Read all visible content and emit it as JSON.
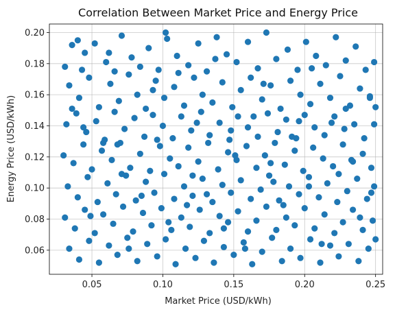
{
  "chart_data": {
    "type": "scatter",
    "title": "Correlation Between Market Price and Energy Price",
    "xlabel": "Market Price (USD/kWh)",
    "ylabel": "Energy Price (USD/kWh)",
    "xlim": [
      0.02,
      0.255
    ],
    "ylim": [
      0.0445,
      0.2055
    ],
    "xticks": [
      0.05,
      0.1,
      0.15,
      0.2,
      0.25
    ],
    "xtick_labels": [
      "0.05",
      "0.10",
      "0.15",
      "0.20",
      "0.25"
    ],
    "yticks": [
      0.06,
      0.08,
      0.1,
      0.12,
      0.14,
      0.16,
      0.18,
      0.2
    ],
    "ytick_labels": [
      "0.06",
      "0.08",
      "0.10",
      "0.12",
      "0.14",
      "0.16",
      "0.18",
      "0.20"
    ],
    "grid": true,
    "legend": "none",
    "marker_color": "#1f77b4",
    "series": [
      {
        "points": [
          [
            0.031,
            0.178
          ],
          [
            0.036,
            0.192
          ],
          [
            0.04,
            0.195
          ],
          [
            0.045,
            0.187
          ],
          [
            0.052,
            0.193
          ],
          [
            0.06,
            0.181
          ],
          [
            0.066,
            0.175
          ],
          [
            0.071,
            0.198
          ],
          [
            0.078,
            0.184
          ],
          [
            0.084,
            0.178
          ],
          [
            0.09,
            0.19
          ],
          [
            0.097,
            0.176
          ],
          [
            0.103,
            0.196
          ],
          [
            0.11,
            0.185
          ],
          [
            0.118,
            0.179
          ],
          [
            0.125,
            0.193
          ],
          [
            0.131,
            0.175
          ],
          [
            0.138,
            0.197
          ],
          [
            0.145,
            0.186
          ],
          [
            0.152,
            0.181
          ],
          [
            0.16,
            0.194
          ],
          [
            0.167,
            0.177
          ],
          [
            0.173,
            0.2
          ],
          [
            0.18,
            0.183
          ],
          [
            0.188,
            0.189
          ],
          [
            0.195,
            0.176
          ],
          [
            0.201,
            0.194
          ],
          [
            0.208,
            0.185
          ],
          [
            0.215,
            0.179
          ],
          [
            0.222,
            0.197
          ],
          [
            0.229,
            0.182
          ],
          [
            0.236,
            0.191
          ],
          [
            0.243,
            0.176
          ],
          [
            0.249,
            0.181
          ],
          [
            0.102,
            0.2
          ],
          [
            0.034,
            0.166
          ],
          [
            0.041,
            0.158
          ],
          [
            0.048,
            0.171
          ],
          [
            0.055,
            0.152
          ],
          [
            0.063,
            0.167
          ],
          [
            0.069,
            0.156
          ],
          [
            0.076,
            0.173
          ],
          [
            0.082,
            0.16
          ],
          [
            0.088,
            0.151
          ],
          [
            0.095,
            0.169
          ],
          [
            0.101,
            0.158
          ],
          [
            0.108,
            0.165
          ],
          [
            0.115,
            0.153
          ],
          [
            0.122,
            0.171
          ],
          [
            0.128,
            0.16
          ],
          [
            0.135,
            0.155
          ],
          [
            0.142,
            0.168
          ],
          [
            0.149,
            0.152
          ],
          [
            0.155,
            0.163
          ],
          [
            0.162,
            0.171
          ],
          [
            0.17,
            0.157
          ],
          [
            0.176,
            0.166
          ],
          [
            0.183,
            0.151
          ],
          [
            0.19,
            0.169
          ],
          [
            0.197,
            0.16
          ],
          [
            0.204,
            0.154
          ],
          [
            0.211,
            0.167
          ],
          [
            0.218,
            0.158
          ],
          [
            0.225,
            0.172
          ],
          [
            0.232,
            0.153
          ],
          [
            0.239,
            0.164
          ],
          [
            0.246,
            0.159
          ],
          [
            0.25,
            0.152
          ],
          [
            0.032,
            0.141
          ],
          [
            0.039,
            0.148
          ],
          [
            0.046,
            0.136
          ],
          [
            0.053,
            0.143
          ],
          [
            0.059,
            0.131
          ],
          [
            0.066,
            0.149
          ],
          [
            0.073,
            0.138
          ],
          [
            0.08,
            0.145
          ],
          [
            0.087,
            0.133
          ],
          [
            0.093,
            0.147
          ],
          [
            0.1,
            0.14
          ],
          [
            0.107,
            0.132
          ],
          [
            0.113,
            0.146
          ],
          [
            0.12,
            0.137
          ],
          [
            0.127,
            0.149
          ],
          [
            0.133,
            0.134
          ],
          [
            0.14,
            0.142
          ],
          [
            0.147,
            0.131
          ],
          [
            0.153,
            0.146
          ],
          [
            0.16,
            0.139
          ],
          [
            0.167,
            0.133
          ],
          [
            0.174,
            0.148
          ],
          [
            0.181,
            0.136
          ],
          [
            0.187,
            0.144
          ],
          [
            0.194,
            0.132
          ],
          [
            0.2,
            0.147
          ],
          [
            0.207,
            0.139
          ],
          [
            0.214,
            0.134
          ],
          [
            0.221,
            0.146
          ],
          [
            0.228,
            0.138
          ],
          [
            0.235,
            0.141
          ],
          [
            0.242,
            0.132
          ],
          [
            0.249,
            0.141
          ],
          [
            0.03,
            0.121
          ],
          [
            0.037,
            0.116
          ],
          [
            0.044,
            0.128
          ],
          [
            0.05,
            0.112
          ],
          [
            0.057,
            0.124
          ],
          [
            0.064,
            0.118
          ],
          [
            0.07,
            0.129
          ],
          [
            0.077,
            0.113
          ],
          [
            0.084,
            0.122
          ],
          [
            0.091,
            0.111
          ],
          [
            0.098,
            0.127
          ],
          [
            0.105,
            0.119
          ],
          [
            0.111,
            0.114
          ],
          [
            0.118,
            0.126
          ],
          [
            0.125,
            0.117
          ],
          [
            0.132,
            0.129
          ],
          [
            0.139,
            0.112
          ],
          [
            0.146,
            0.123
          ],
          [
            0.152,
            0.118
          ],
          [
            0.159,
            0.127
          ],
          [
            0.166,
            0.113
          ],
          [
            0.172,
            0.121
          ],
          [
            0.179,
            0.129
          ],
          [
            0.186,
            0.115
          ],
          [
            0.193,
            0.124
          ],
          [
            0.199,
            0.111
          ],
          [
            0.206,
            0.126
          ],
          [
            0.213,
            0.119
          ],
          [
            0.22,
            0.114
          ],
          [
            0.227,
            0.128
          ],
          [
            0.234,
            0.117
          ],
          [
            0.241,
            0.122
          ],
          [
            0.247,
            0.113
          ],
          [
            0.033,
            0.101
          ],
          [
            0.04,
            0.094
          ],
          [
            0.047,
            0.107
          ],
          [
            0.054,
            0.091
          ],
          [
            0.061,
            0.103
          ],
          [
            0.067,
            0.096
          ],
          [
            0.074,
            0.108
          ],
          [
            0.081,
            0.092
          ],
          [
            0.088,
            0.104
          ],
          [
            0.094,
            0.097
          ],
          [
            0.101,
            0.109
          ],
          [
            0.108,
            0.093
          ],
          [
            0.115,
            0.101
          ],
          [
            0.121,
            0.095
          ],
          [
            0.128,
            0.106
          ],
          [
            0.135,
            0.091
          ],
          [
            0.142,
            0.102
          ],
          [
            0.148,
            0.097
          ],
          [
            0.155,
            0.105
          ],
          [
            0.162,
            0.093
          ],
          [
            0.169,
            0.099
          ],
          [
            0.175,
            0.108
          ],
          [
            0.182,
            0.092
          ],
          [
            0.189,
            0.101
          ],
          [
            0.196,
            0.096
          ],
          [
            0.203,
            0.107
          ],
          [
            0.21,
            0.094
          ],
          [
            0.216,
            0.103
          ],
          [
            0.223,
            0.091
          ],
          [
            0.23,
            0.098
          ],
          [
            0.237,
            0.106
          ],
          [
            0.244,
            0.093
          ],
          [
            0.249,
            0.101
          ],
          [
            0.031,
            0.081
          ],
          [
            0.038,
            0.074
          ],
          [
            0.045,
            0.086
          ],
          [
            0.052,
            0.071
          ],
          [
            0.058,
            0.083
          ],
          [
            0.065,
            0.077
          ],
          [
            0.072,
            0.088
          ],
          [
            0.079,
            0.072
          ],
          [
            0.086,
            0.084
          ],
          [
            0.092,
            0.076
          ],
          [
            0.099,
            0.087
          ],
          [
            0.106,
            0.073
          ],
          [
            0.113,
            0.081
          ],
          [
            0.119,
            0.075
          ],
          [
            0.126,
            0.086
          ],
          [
            0.133,
            0.071
          ],
          [
            0.14,
            0.082
          ],
          [
            0.146,
            0.078
          ],
          [
            0.153,
            0.085
          ],
          [
            0.16,
            0.072
          ],
          [
            0.166,
            0.079
          ],
          [
            0.173,
            0.088
          ],
          [
            0.18,
            0.073
          ],
          [
            0.187,
            0.081
          ],
          [
            0.193,
            0.076
          ],
          [
            0.2,
            0.087
          ],
          [
            0.207,
            0.074
          ],
          [
            0.214,
            0.083
          ],
          [
            0.221,
            0.071
          ],
          [
            0.227,
            0.078
          ],
          [
            0.234,
            0.086
          ],
          [
            0.241,
            0.073
          ],
          [
            0.248,
            0.079
          ],
          [
            0.034,
            0.061
          ],
          [
            0.041,
            0.054
          ],
          [
            0.048,
            0.066
          ],
          [
            0.055,
            0.052
          ],
          [
            0.062,
            0.063
          ],
          [
            0.068,
            0.057
          ],
          [
            0.075,
            0.068
          ],
          [
            0.082,
            0.053
          ],
          [
            0.089,
            0.064
          ],
          [
            0.096,
            0.056
          ],
          [
            0.102,
            0.067
          ],
          [
            0.109,
            0.051
          ],
          [
            0.116,
            0.061
          ],
          [
            0.123,
            0.055
          ],
          [
            0.129,
            0.066
          ],
          [
            0.136,
            0.052
          ],
          [
            0.143,
            0.062
          ],
          [
            0.15,
            0.057
          ],
          [
            0.157,
            0.065
          ],
          [
            0.163,
            0.051
          ],
          [
            0.17,
            0.059
          ],
          [
            0.177,
            0.068
          ],
          [
            0.184,
            0.053
          ],
          [
            0.19,
            0.061
          ],
          [
            0.197,
            0.055
          ],
          [
            0.204,
            0.067
          ],
          [
            0.211,
            0.052
          ],
          [
            0.218,
            0.063
          ],
          [
            0.224,
            0.056
          ],
          [
            0.231,
            0.064
          ],
          [
            0.238,
            0.053
          ],
          [
            0.245,
            0.061
          ],
          [
            0.25,
            0.067
          ],
          [
            0.036,
            0.151
          ],
          [
            0.043,
            0.176
          ],
          [
            0.058,
            0.129
          ],
          [
            0.071,
            0.109
          ],
          [
            0.085,
            0.095
          ],
          [
            0.096,
            0.131
          ],
          [
            0.111,
            0.174
          ],
          [
            0.124,
            0.142
          ],
          [
            0.137,
            0.183
          ],
          [
            0.151,
            0.121
          ],
          [
            0.164,
            0.146
          ],
          [
            0.178,
            0.104
          ],
          [
            0.191,
            0.133
          ],
          [
            0.205,
            0.177
          ],
          [
            0.219,
            0.142
          ],
          [
            0.233,
            0.118
          ],
          [
            0.246,
            0.158
          ],
          [
            0.049,
            0.082
          ],
          [
            0.076,
            0.061
          ],
          [
            0.104,
            0.078
          ],
          [
            0.131,
            0.096
          ],
          [
            0.158,
            0.061
          ],
          [
            0.185,
            0.089
          ],
          [
            0.212,
            0.064
          ],
          [
            0.239,
            0.081
          ],
          [
            0.062,
            0.187
          ],
          [
            0.093,
            0.163
          ],
          [
            0.121,
            0.108
          ],
          [
            0.148,
            0.137
          ],
          [
            0.176,
            0.116
          ],
          [
            0.203,
            0.101
          ],
          [
            0.229,
            0.151
          ],
          [
            0.044,
            0.139
          ],
          [
            0.068,
            0.128
          ],
          [
            0.117,
            0.089
          ],
          [
            0.143,
            0.074
          ],
          [
            0.171,
            0.167
          ],
          [
            0.196,
            0.143
          ],
          [
            0.224,
            0.109
          ],
          [
            0.247,
            0.097
          ]
        ]
      }
    ]
  }
}
